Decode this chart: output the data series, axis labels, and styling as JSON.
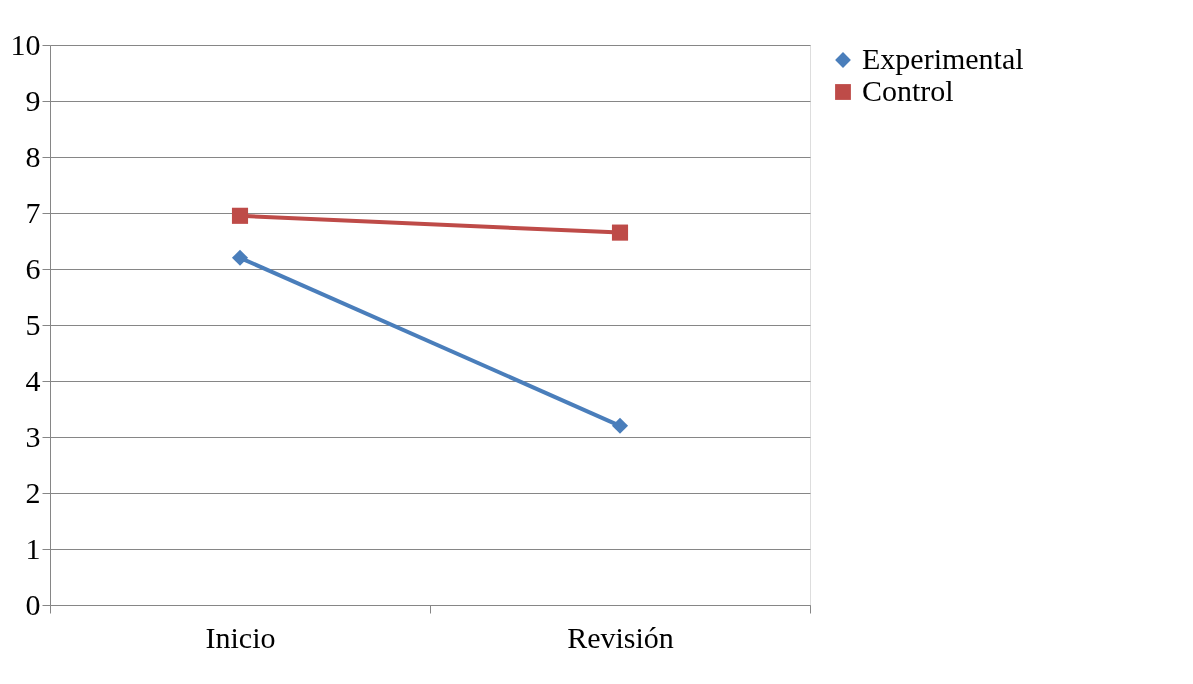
{
  "chart_data": {
    "type": "line",
    "categories": [
      "Inicio",
      "Revisión"
    ],
    "series": [
      {
        "name": "Experimental",
        "color": "#4a7ebb",
        "marker": "diamond",
        "values": [
          6.2,
          3.2
        ]
      },
      {
        "name": "Control",
        "color": "#be4b48",
        "marker": "square",
        "values": [
          6.95,
          6.65
        ]
      }
    ],
    "ylim": [
      0,
      10
    ],
    "yticks": [
      0,
      1,
      2,
      3,
      4,
      5,
      6,
      7,
      8,
      9,
      10
    ],
    "grid": "y",
    "legend": "right"
  }
}
